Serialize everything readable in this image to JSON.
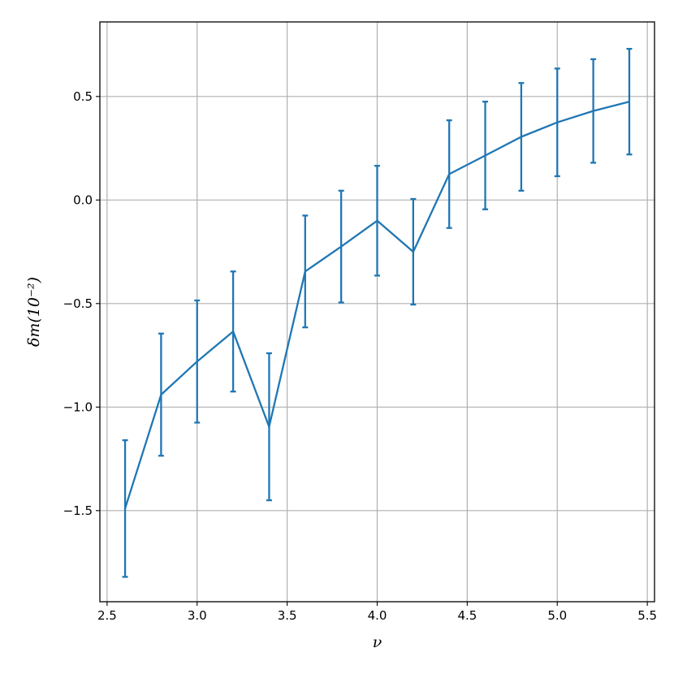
{
  "chart_data": {
    "type": "line",
    "title": "",
    "xlabel": "ν",
    "ylabel": "δm(10⁻²)",
    "xlim": [
      2.46,
      5.54
    ],
    "ylim": [
      -1.94,
      0.86
    ],
    "xticks": [
      2.5,
      3.0,
      3.5,
      4.0,
      4.5,
      5.0,
      5.5
    ],
    "xtick_labels": [
      "2.5",
      "3.0",
      "3.5",
      "4.0",
      "4.5",
      "5.0",
      "5.5"
    ],
    "yticks": [
      -1.5,
      -1.0,
      -0.5,
      0.0,
      0.5
    ],
    "ytick_labels": [
      "−1.5",
      "−1.0",
      "−0.5",
      "0.0",
      "0.5"
    ],
    "grid": true,
    "series": [
      {
        "color": "#1f77b4",
        "x": [
          2.6,
          2.8,
          3.0,
          3.2,
          3.4,
          3.6,
          3.8,
          4.0,
          4.2,
          4.4,
          4.6,
          4.8,
          5.0,
          5.2,
          5.4
        ],
        "y": [
          -1.49,
          -0.94,
          -0.78,
          -0.635,
          -1.095,
          -0.345,
          -0.225,
          -0.1,
          -0.25,
          0.125,
          0.215,
          0.305,
          0.375,
          0.43,
          0.475
        ],
        "yerr": [
          0.33,
          0.295,
          0.295,
          0.29,
          0.355,
          0.27,
          0.27,
          0.265,
          0.255,
          0.26,
          0.26,
          0.26,
          0.26,
          0.25,
          0.255
        ]
      }
    ]
  }
}
